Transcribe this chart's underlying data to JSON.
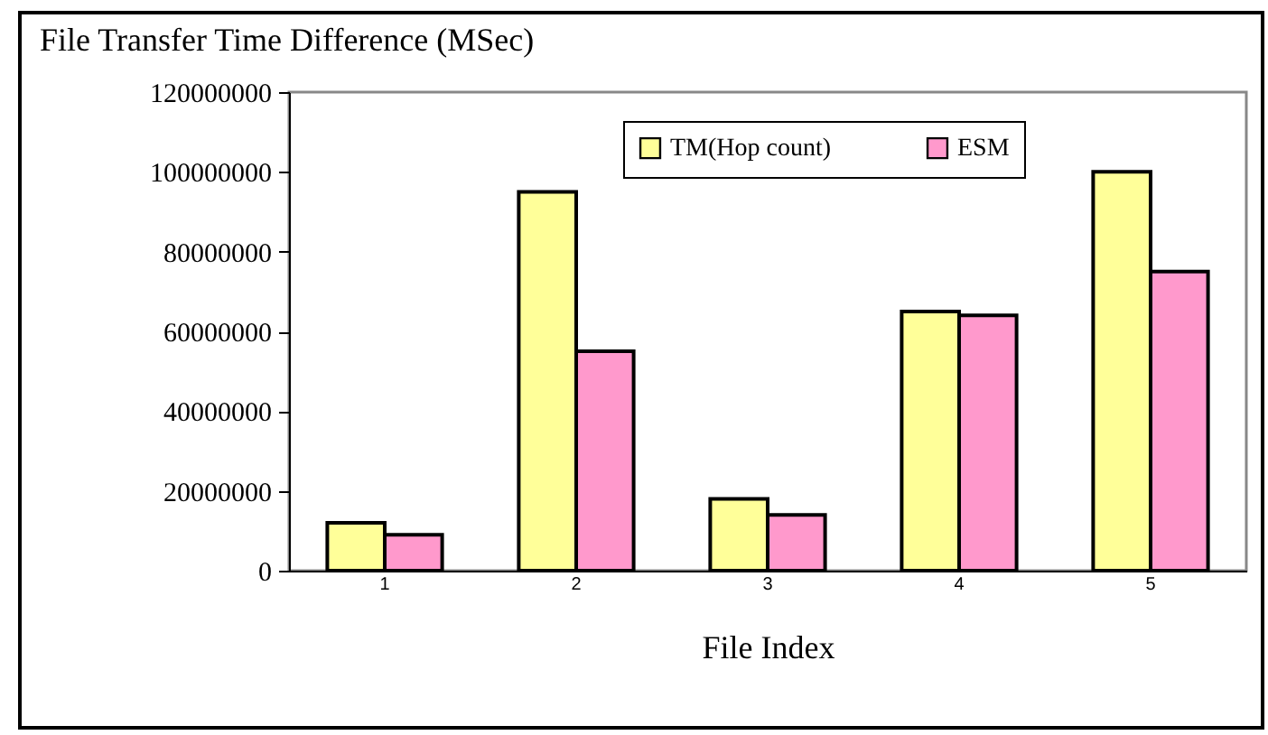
{
  "chart_data": {
    "type": "bar",
    "title": "File Transfer Time Difference (MSec)",
    "xlabel": "File Index",
    "categories": [
      "1",
      "2",
      "3",
      "4",
      "5"
    ],
    "series": [
      {
        "name": "TM(Hop count)",
        "color": "#ffff99",
        "values": [
          12000000,
          95000000,
          18000000,
          65000000,
          100000000
        ]
      },
      {
        "name": "ESM",
        "color": "#ff99cc",
        "values": [
          9000000,
          55000000,
          14000000,
          64000000,
          75000000
        ]
      }
    ],
    "ylim": [
      0,
      120000000
    ],
    "yticks": [
      0,
      20000000,
      40000000,
      60000000,
      80000000,
      100000000,
      120000000
    ],
    "grid": false,
    "legend": "top"
  }
}
